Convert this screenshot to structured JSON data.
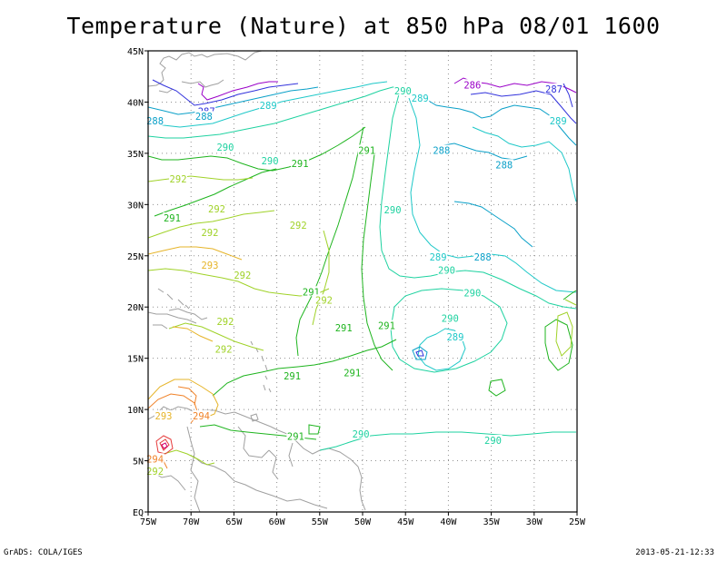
{
  "title": "Temperature (Nature) at 850 hPa 08/01 1600",
  "footer_left": "GrADS: COLA/IGES",
  "footer_right": "2013-05-21-12:33",
  "lon_ticks": [
    "75W",
    "70W",
    "65W",
    "60W",
    "55W",
    "50W",
    "45W",
    "40W",
    "35W",
    "30W",
    "25W"
  ],
  "lat_ticks": [
    "EQ",
    "5N",
    "10N",
    "15N",
    "20N",
    "25N",
    "30N",
    "35N",
    "40N",
    "45N"
  ],
  "extent": {
    "lon": [
      -75,
      -25
    ],
    "lat": [
      0,
      45
    ]
  },
  "grid": "dotted",
  "colors": {
    "land": "#a0a0a0",
    "frame": "#000000",
    "grid": "#909090",
    "c286": "#9a00c8",
    "c287": "#3232dc",
    "c288": "#0aa0c8",
    "c289": "#1ec8c8",
    "c290": "#1ed2a0",
    "c291": "#1eb41e",
    "c292": "#a0d228",
    "c293": "#e6b428",
    "c294": "#f08228",
    "c295": "#e63c3c",
    "c296": "#d2006e"
  },
  "contour_labels": [
    {
      "text": "286",
      "lon": -37.2,
      "lat": 41.7,
      "color": "c286"
    },
    {
      "text": "287",
      "lon": -27.7,
      "lat": 41.3,
      "color": "c287"
    },
    {
      "text": "287",
      "lon": -68.2,
      "lat": 39.1,
      "color": "c287"
    },
    {
      "text": "288",
      "lon": -68.5,
      "lat": 38.6,
      "color": "c288"
    },
    {
      "text": "288",
      "lon": -74.2,
      "lat": 38.2,
      "color": "c288"
    },
    {
      "text": "289",
      "lon": -61,
      "lat": 39.7,
      "color": "c289"
    },
    {
      "text": "289",
      "lon": -27.2,
      "lat": 38.2,
      "color": "c289"
    },
    {
      "text": "290",
      "lon": -45.3,
      "lat": 41.1,
      "color": "c290"
    },
    {
      "text": "289",
      "lon": -43.3,
      "lat": 40.4,
      "color": "c289"
    },
    {
      "text": "290",
      "lon": -66,
      "lat": 35.6,
      "color": "c290"
    },
    {
      "text": "290",
      "lon": -60.8,
      "lat": 34.3,
      "color": "c290"
    },
    {
      "text": "291",
      "lon": -57.3,
      "lat": 34.0,
      "color": "c291"
    },
    {
      "text": "291",
      "lon": -49.5,
      "lat": 35.3,
      "color": "c291"
    },
    {
      "text": "288",
      "lon": -40.8,
      "lat": 35.3,
      "color": "c288"
    },
    {
      "text": "288",
      "lon": -33.5,
      "lat": 33.9,
      "color": "c288"
    },
    {
      "text": "292",
      "lon": -71.5,
      "lat": 32.5,
      "color": "c292"
    },
    {
      "text": "292",
      "lon": -67,
      "lat": 29.6,
      "color": "c292"
    },
    {
      "text": "290",
      "lon": -46.5,
      "lat": 29.5,
      "color": "c290"
    },
    {
      "text": "291",
      "lon": -72.2,
      "lat": 28.7,
      "color": "c291"
    },
    {
      "text": "292",
      "lon": -67.8,
      "lat": 27.3,
      "color": "c292"
    },
    {
      "text": "292",
      "lon": -57.5,
      "lat": 28.0,
      "color": "c292"
    },
    {
      "text": "293",
      "lon": -67.8,
      "lat": 24.1,
      "color": "c293"
    },
    {
      "text": "292",
      "lon": -64,
      "lat": 23.1,
      "color": "c292"
    },
    {
      "text": "289",
      "lon": -41.2,
      "lat": 24.9,
      "color": "c289"
    },
    {
      "text": "288",
      "lon": -36.0,
      "lat": 24.9,
      "color": "c288"
    },
    {
      "text": "290",
      "lon": -40.2,
      "lat": 23.6,
      "color": "c290"
    },
    {
      "text": "291",
      "lon": -56,
      "lat": 21.5,
      "color": "c291"
    },
    {
      "text": "292",
      "lon": -54.5,
      "lat": 20.7,
      "color": "c292"
    },
    {
      "text": "290",
      "lon": -37.2,
      "lat": 21.4,
      "color": "c290"
    },
    {
      "text": "292",
      "lon": -66,
      "lat": 18.6,
      "color": "c292"
    },
    {
      "text": "291",
      "lon": -52.2,
      "lat": 18.0,
      "color": "c291"
    },
    {
      "text": "291",
      "lon": -47.2,
      "lat": 18.2,
      "color": "c291"
    },
    {
      "text": "290",
      "lon": -39.8,
      "lat": 18.9,
      "color": "c290"
    },
    {
      "text": "289",
      "lon": -39.2,
      "lat": 17.1,
      "color": "c289"
    },
    {
      "text": "292",
      "lon": -66.2,
      "lat": 15.9,
      "color": "c292"
    },
    {
      "text": "291",
      "lon": -58.2,
      "lat": 13.3,
      "color": "c291"
    },
    {
      "text": "291",
      "lon": -51.2,
      "lat": 13.6,
      "color": "c291"
    },
    {
      "text": "293",
      "lon": -73.2,
      "lat": 9.4,
      "color": "c293"
    },
    {
      "text": "294",
      "lon": -68.8,
      "lat": 9.4,
      "color": "c294"
    },
    {
      "text": "294",
      "lon": -74.2,
      "lat": 5.2,
      "color": "c294"
    },
    {
      "text": "292",
      "lon": -74.2,
      "lat": 4.0,
      "color": "c292"
    },
    {
      "text": "291",
      "lon": -57.8,
      "lat": 7.4,
      "color": "c291"
    },
    {
      "text": "290",
      "lon": -50.2,
      "lat": 7.6,
      "color": "c290"
    },
    {
      "text": "290",
      "lon": -34.8,
      "lat": 7.0,
      "color": "c290"
    }
  ]
}
